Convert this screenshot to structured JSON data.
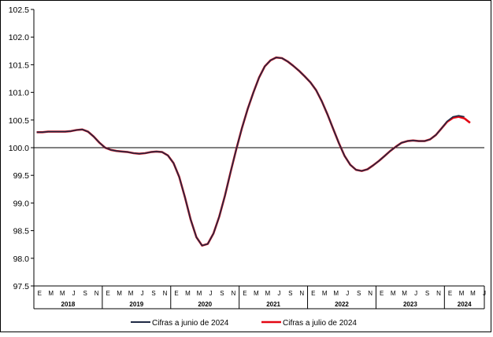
{
  "chart_data": {
    "type": "line",
    "title": "",
    "xlabel": "",
    "ylabel": "",
    "ylim": [
      97.5,
      102.5
    ],
    "yticks": [
      "97.5",
      "98.0",
      "98.5",
      "99.0",
      "99.5",
      "100.0",
      "100.5",
      "101.0",
      "101.5",
      "102.0",
      "102.5"
    ],
    "reference_line": 100.0,
    "grid": false,
    "legend_position": "bottom",
    "month_labels": [
      "E",
      "M",
      "M",
      "J",
      "S",
      "N",
      "E",
      "M",
      "M",
      "J",
      "S",
      "N",
      "E",
      "M",
      "M",
      "J",
      "S",
      "N",
      "E",
      "M",
      "M",
      "J",
      "S",
      "N",
      "E",
      "M",
      "M",
      "J",
      "S",
      "N",
      "E",
      "M",
      "M",
      "J",
      "S",
      "N",
      "E",
      "M",
      "M",
      "J"
    ],
    "year_labels": [
      "2018",
      "2019",
      "2020",
      "2021",
      "2022",
      "2023",
      "2024"
    ],
    "x_start": "2018-01",
    "x_step_months": 1,
    "series": [
      {
        "name": "Cifras a junio de 2024",
        "color": "#1f2a44",
        "values": [
          100.28,
          100.28,
          100.29,
          100.29,
          100.29,
          100.29,
          100.3,
          100.32,
          100.33,
          100.29,
          100.2,
          100.09,
          100.0,
          99.96,
          99.94,
          99.93,
          99.92,
          99.9,
          99.89,
          99.9,
          99.92,
          99.93,
          99.92,
          99.86,
          99.72,
          99.47,
          99.1,
          98.7,
          98.38,
          98.23,
          98.26,
          98.45,
          98.75,
          99.13,
          99.56,
          99.97,
          100.36,
          100.7,
          101.0,
          101.27,
          101.47,
          101.58,
          101.63,
          101.62,
          101.56,
          101.48,
          101.39,
          101.29,
          101.18,
          101.04,
          100.84,
          100.6,
          100.34,
          100.08,
          99.85,
          99.69,
          99.6,
          99.58,
          99.61,
          99.68,
          99.76,
          99.85,
          99.94,
          100.02,
          100.09,
          100.12,
          100.13,
          100.12,
          100.12,
          100.15,
          100.23,
          100.35,
          100.48,
          100.56,
          100.58,
          100.56
        ]
      },
      {
        "name": "Cifras a julio de 2024",
        "color": "#e30613",
        "values": [
          100.28,
          100.28,
          100.29,
          100.29,
          100.29,
          100.29,
          100.3,
          100.32,
          100.33,
          100.29,
          100.2,
          100.09,
          100.0,
          99.96,
          99.94,
          99.93,
          99.92,
          99.9,
          99.89,
          99.9,
          99.92,
          99.93,
          99.92,
          99.86,
          99.72,
          99.47,
          99.1,
          98.7,
          98.38,
          98.23,
          98.26,
          98.45,
          98.75,
          99.13,
          99.56,
          99.97,
          100.36,
          100.7,
          101.0,
          101.27,
          101.47,
          101.58,
          101.63,
          101.62,
          101.56,
          101.48,
          101.39,
          101.29,
          101.18,
          101.04,
          100.84,
          100.6,
          100.34,
          100.08,
          99.85,
          99.69,
          99.6,
          99.58,
          99.61,
          99.68,
          99.76,
          99.85,
          99.94,
          100.02,
          100.09,
          100.12,
          100.13,
          100.12,
          100.12,
          100.15,
          100.23,
          100.35,
          100.47,
          100.54,
          100.56,
          100.53,
          100.45
        ]
      }
    ]
  }
}
